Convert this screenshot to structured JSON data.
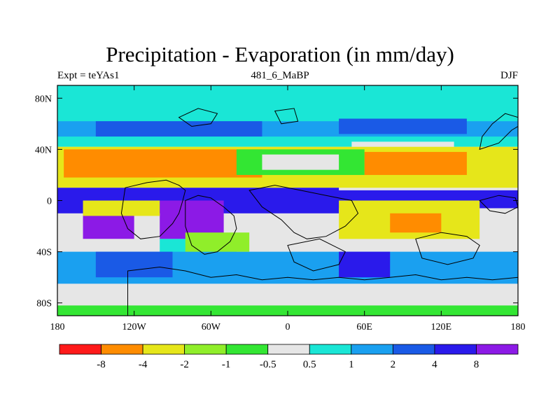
{
  "chart_data": {
    "type": "heatmap",
    "title": "Precipitation - Evaporation (in mm/day)",
    "subtitle_left": "Expt = teYAs1",
    "subtitle_center": "481_6_MaBP",
    "subtitle_right": "DJF",
    "projection": "cylindrical equidistant",
    "xlim": [
      -180,
      180
    ],
    "ylim": [
      -90,
      90
    ],
    "x_ticks": [
      {
        "value": -180,
        "label": "180"
      },
      {
        "value": -120,
        "label": "120W"
      },
      {
        "value": -60,
        "label": "60W"
      },
      {
        "value": 0,
        "label": "0"
      },
      {
        "value": 60,
        "label": "60E"
      },
      {
        "value": 120,
        "label": "120E"
      },
      {
        "value": 180,
        "label": "180"
      }
    ],
    "y_ticks": [
      {
        "value": 80,
        "label": "80N"
      },
      {
        "value": 40,
        "label": "40N"
      },
      {
        "value": 0,
        "label": "0"
      },
      {
        "value": -40,
        "label": "40S"
      },
      {
        "value": -80,
        "label": "80S"
      }
    ],
    "colorbar": {
      "orientation": "horizontal",
      "levels": [
        "-8",
        "-4",
        "-2",
        "-1",
        "-0.5",
        "0.5",
        "1",
        "2",
        "4",
        "8"
      ],
      "colors": [
        "#ff1a1a",
        "#ff8c00",
        "#e6e61a",
        "#90ee2a",
        "#33e633",
        "#e6e6e6",
        "#1ae6d6",
        "#1aa0f0",
        "#1a5ae6",
        "#2a1aeb",
        "#8c1ae6"
      ]
    },
    "field_regions": [
      {
        "category": 6,
        "lon": [
          -180,
          180
        ],
        "lat": [
          60,
          90
        ]
      },
      {
        "category": 7,
        "lon": [
          -180,
          180
        ],
        "lat": [
          48,
          62
        ]
      },
      {
        "category": 8,
        "lon": [
          -150,
          -20
        ],
        "lat": [
          50,
          62
        ]
      },
      {
        "category": 8,
        "lon": [
          40,
          140
        ],
        "lat": [
          52,
          64
        ]
      },
      {
        "category": 6,
        "lon": [
          -180,
          180
        ],
        "lat": [
          42,
          50
        ]
      },
      {
        "category": 5,
        "lon": [
          50,
          130
        ],
        "lat": [
          38,
          46
        ]
      },
      {
        "category": 2,
        "lon": [
          -180,
          180
        ],
        "lat": [
          10,
          42
        ]
      },
      {
        "category": 1,
        "lon": [
          -175,
          -20
        ],
        "lat": [
          18,
          40
        ]
      },
      {
        "category": 1,
        "lon": [
          60,
          140
        ],
        "lat": [
          20,
          38
        ]
      },
      {
        "category": 4,
        "lon": [
          -40,
          60
        ],
        "lat": [
          20,
          40
        ]
      },
      {
        "category": 5,
        "lon": [
          -20,
          40
        ],
        "lat": [
          24,
          36
        ]
      },
      {
        "category": 9,
        "lon": [
          -180,
          40
        ],
        "lat": [
          -10,
          10
        ]
      },
      {
        "category": 9,
        "lon": [
          20,
          180
        ],
        "lat": [
          -6,
          8
        ]
      },
      {
        "category": 10,
        "lon": [
          -100,
          -50
        ],
        "lat": [
          -30,
          0
        ]
      },
      {
        "category": 10,
        "lon": [
          -160,
          -120
        ],
        "lat": [
          -30,
          -5
        ]
      },
      {
        "category": 2,
        "lon": [
          -160,
          -100
        ],
        "lat": [
          -12,
          0
        ]
      },
      {
        "category": 2,
        "lon": [
          40,
          150
        ],
        "lat": [
          -30,
          0
        ]
      },
      {
        "category": 1,
        "lon": [
          80,
          120
        ],
        "lat": [
          -25,
          -10
        ]
      },
      {
        "category": 6,
        "lon": [
          -100,
          -40
        ],
        "lat": [
          -45,
          -30
        ]
      },
      {
        "category": 5,
        "lon": [
          -180,
          -110
        ],
        "lat": [
          -90,
          -30
        ]
      },
      {
        "category": 7,
        "lon": [
          -180,
          180
        ],
        "lat": [
          -65,
          -40
        ]
      },
      {
        "category": 8,
        "lon": [
          -150,
          -90
        ],
        "lat": [
          -60,
          -40
        ]
      },
      {
        "category": 3,
        "lon": [
          -80,
          -30
        ],
        "lat": [
          -40,
          -25
        ]
      },
      {
        "category": 9,
        "lon": [
          40,
          80
        ],
        "lat": [
          -60,
          -40
        ]
      },
      {
        "category": 5,
        "lon": [
          -110,
          180
        ],
        "lat": [
          -90,
          -70
        ]
      },
      {
        "category": 4,
        "lon": [
          -180,
          180
        ],
        "lat": [
          -90,
          -82
        ]
      }
    ],
    "coastline_polygons": [
      [
        [
          -127,
          10
        ],
        [
          -110,
          14
        ],
        [
          -95,
          16
        ],
        [
          -85,
          12
        ],
        [
          -80,
          8
        ],
        [
          -82,
          0
        ],
        [
          -85,
          -10
        ],
        [
          -90,
          -18
        ],
        [
          -100,
          -28
        ],
        [
          -115,
          -30
        ],
        [
          -125,
          -22
        ],
        [
          -130,
          -10
        ]
      ],
      [
        [
          -80,
          0
        ],
        [
          -70,
          4
        ],
        [
          -60,
          2
        ],
        [
          -50,
          -5
        ],
        [
          -42,
          -12
        ],
        [
          -40,
          -22
        ],
        [
          -45,
          -32
        ],
        [
          -55,
          -40
        ],
        [
          -65,
          -42
        ],
        [
          -75,
          -35
        ],
        [
          -80,
          -20
        ]
      ],
      [
        [
          -30,
          8
        ],
        [
          -10,
          12
        ],
        [
          10,
          8
        ],
        [
          30,
          4
        ],
        [
          50,
          0
        ],
        [
          55,
          -10
        ],
        [
          45,
          -20
        ],
        [
          30,
          -28
        ],
        [
          15,
          -30
        ],
        [
          5,
          -25
        ],
        [
          -5,
          -15
        ],
        [
          -20,
          -5
        ]
      ],
      [
        [
          0,
          -35
        ],
        [
          25,
          -30
        ],
        [
          45,
          -40
        ],
        [
          40,
          -50
        ],
        [
          20,
          -55
        ],
        [
          5,
          -48
        ]
      ],
      [
        [
          100,
          -30
        ],
        [
          120,
          -25
        ],
        [
          140,
          -28
        ],
        [
          150,
          -35
        ],
        [
          145,
          -45
        ],
        [
          125,
          -50
        ],
        [
          105,
          -45
        ]
      ],
      [
        [
          -125,
          -55
        ],
        [
          -100,
          -52
        ],
        [
          -80,
          -55
        ],
        [
          -60,
          -60
        ],
        [
          -40,
          -58
        ],
        [
          -20,
          -62
        ],
        [
          0,
          -60
        ],
        [
          20,
          -62
        ],
        [
          40,
          -60
        ],
        [
          60,
          -62
        ],
        [
          80,
          -60
        ],
        [
          100,
          -58
        ],
        [
          120,
          -62
        ],
        [
          140,
          -60
        ],
        [
          160,
          -62
        ],
        [
          180,
          -60
        ],
        [
          180,
          -90
        ],
        [
          -125,
          -90
        ]
      ],
      [
        [
          150,
          40
        ],
        [
          165,
          45
        ],
        [
          175,
          55
        ],
        [
          180,
          58
        ],
        [
          180,
          65
        ],
        [
          170,
          68
        ],
        [
          160,
          60
        ],
        [
          152,
          50
        ]
      ],
      [
        [
          150,
          0
        ],
        [
          165,
          4
        ],
        [
          178,
          2
        ],
        [
          180,
          -5
        ],
        [
          170,
          -10
        ],
        [
          158,
          -8
        ]
      ],
      [
        [
          -85,
          65
        ],
        [
          -70,
          72
        ],
        [
          -55,
          68
        ],
        [
          -60,
          60
        ],
        [
          -75,
          58
        ]
      ],
      [
        [
          -10,
          70
        ],
        [
          5,
          72
        ],
        [
          8,
          62
        ],
        [
          -5,
          60
        ]
      ]
    ]
  }
}
